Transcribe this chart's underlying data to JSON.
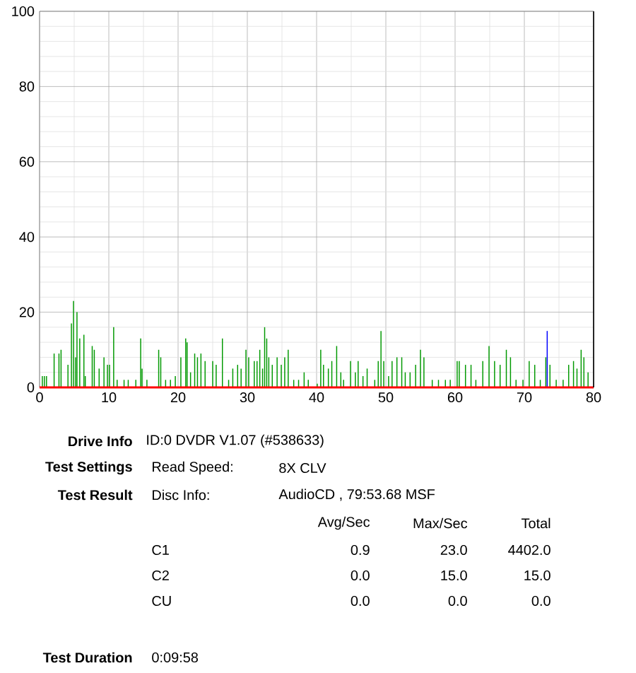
{
  "chart_data": {
    "type": "bar",
    "xlim": [
      0,
      80
    ],
    "ylim": [
      0,
      100
    ],
    "xticks": [
      0,
      10,
      20,
      30,
      40,
      50,
      60,
      70,
      80
    ],
    "yticks": [
      0,
      20,
      40,
      60,
      80,
      100
    ],
    "grid": true,
    "series": [
      {
        "color": "#009900",
        "x": [
          0.4,
          0.7,
          1,
          2.1,
          2.8,
          3.1,
          4.1,
          4.6,
          4.9,
          5.2,
          5.4,
          5.8,
          6.4,
          6.6,
          7.6,
          7.9,
          8.6,
          9.3,
          9.8,
          10.1,
          10.7,
          11.2,
          12.2,
          12.8,
          13.9,
          14.6,
          14.8,
          15.5,
          17.2,
          17.5,
          18.2,
          18.9,
          19.6,
          20.4,
          21.1,
          21.3,
          21.8,
          22.4,
          22.8,
          23.3,
          23.9,
          25,
          25.5,
          26.4,
          27.3,
          27.9,
          28.6,
          29.1,
          29.8,
          30.2,
          31,
          31.4,
          31.8,
          32.2,
          32.5,
          32.8,
          33.1,
          33.6,
          34.3,
          34.9,
          35.4,
          35.9,
          36.7,
          37.4,
          38.2,
          38.8,
          40.1,
          40.6,
          41,
          41.7,
          42.2,
          42.9,
          43.5,
          43.9,
          44.9,
          45.6,
          46,
          46.7,
          47.3,
          48.4,
          48.9,
          49.3,
          49.7,
          50.4,
          50.9,
          51.6,
          52.3,
          52.8,
          53.5,
          54.3,
          55,
          55.5,
          56.7,
          57.6,
          58.6,
          59.3,
          60.3,
          60.6,
          61.5,
          62.3,
          63,
          64,
          64.9,
          65.7,
          66.5,
          67.4,
          68,
          68.8,
          69.8,
          70.7,
          71.5,
          72.3,
          73.1,
          73.7,
          74.6,
          75.6,
          76.4,
          77.1,
          77.6,
          78.2,
          78.6,
          79.2
        ],
        "values": [
          3,
          3,
          3,
          9,
          9,
          10,
          6,
          17,
          23,
          8,
          20,
          13,
          14,
          3,
          11,
          10,
          5,
          8,
          6,
          6,
          16,
          2,
          2,
          2,
          2,
          13,
          5,
          2,
          10,
          8,
          2,
          2,
          3,
          8,
          13,
          12,
          4,
          9,
          8,
          9,
          7,
          7,
          6,
          13,
          2,
          5,
          6,
          5,
          10,
          8,
          7,
          7,
          10,
          5,
          16,
          13,
          8,
          6,
          8,
          6,
          8,
          10,
          2,
          2,
          4,
          2,
          1,
          10,
          6,
          5,
          7,
          11,
          4,
          2,
          7,
          4,
          7,
          3,
          5,
          2,
          7,
          15,
          7,
          3,
          7,
          8,
          8,
          4,
          4,
          6,
          10,
          8,
          2,
          2,
          2,
          2,
          7,
          7,
          6,
          6,
          2,
          7,
          11,
          7,
          6,
          10,
          8,
          2,
          2,
          7,
          6,
          2,
          8,
          6,
          2,
          2,
          6,
          7,
          5,
          10,
          8,
          4
        ]
      },
      {
        "color": "#0000ff",
        "x": [
          73.3
        ],
        "values": [
          15
        ]
      },
      {
        "type": "line",
        "color": "#ff0000",
        "x": [
          0,
          80
        ],
        "values": [
          0,
          0
        ]
      }
    ],
    "ref_lines": [
      {
        "axis": "x",
        "value": 80,
        "color": "#000000"
      }
    ],
    "annotations": [
      "Drive Info",
      "ID:0 DVDR V1.07 (#538633)",
      "Test Settings",
      "Read Speed:",
      "8X CLV",
      "Test Result",
      "Disc Info:",
      "AudioCD , 79:53.68 MSF",
      "Avg/Sec",
      "Max/Sec",
      "Total",
      "C1",
      "0.9",
      "23.0",
      "4402.0",
      "C2",
      "0.0",
      "15.0",
      "15.0",
      "CU",
      "0.0",
      "0.0",
      "0.0",
      "Test Duration",
      "0:09:58"
    ]
  }
}
